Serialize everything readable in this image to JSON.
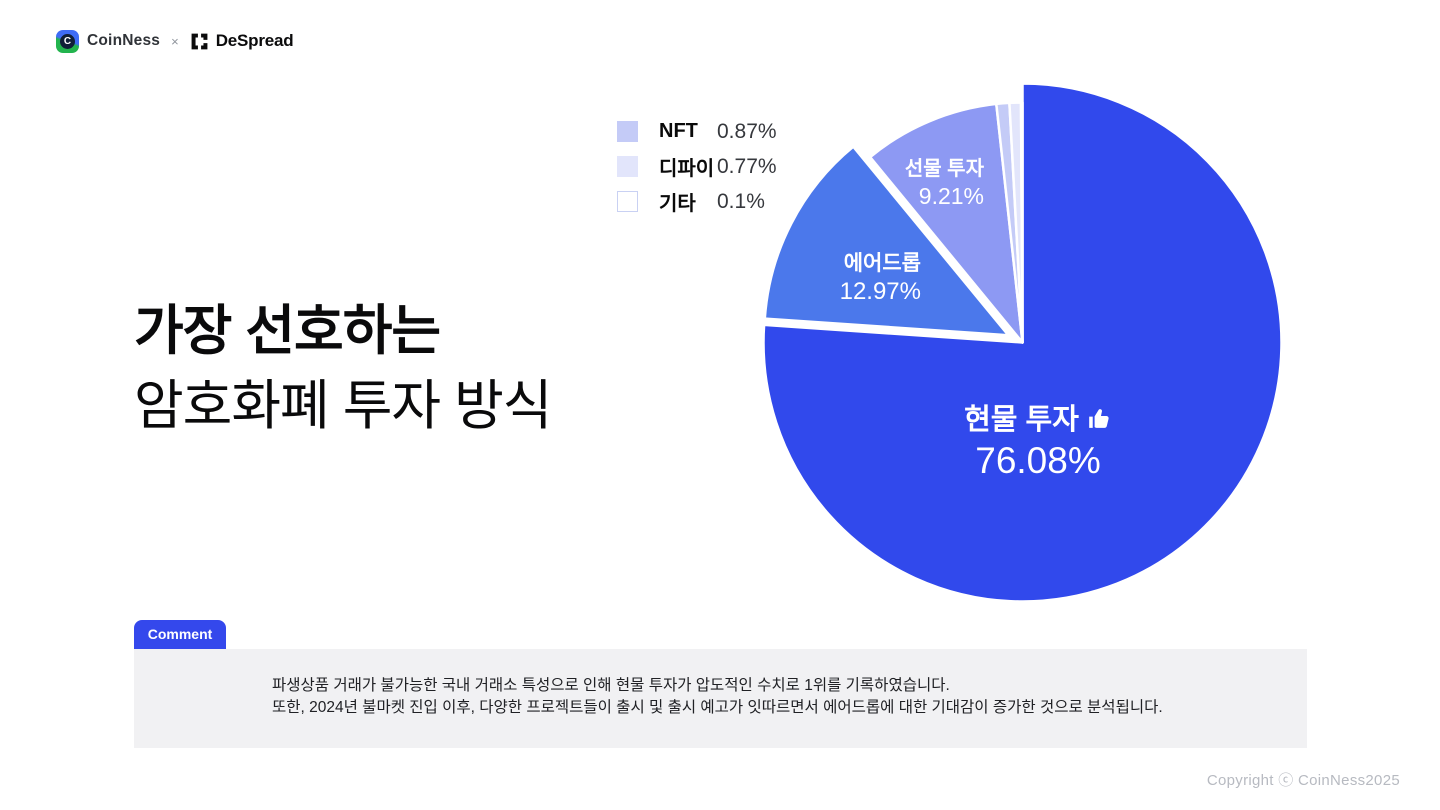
{
  "header": {
    "brand1": "CoinNess",
    "separator": "×",
    "brand2": "DeSpread"
  },
  "title": {
    "line1": "가장 선호하는",
    "line2": "암호화폐 투자 방식"
  },
  "legend": [
    {
      "label": "NFT",
      "value": "0.87%",
      "color": "#c4cbf7",
      "border": "#c4cbf7"
    },
    {
      "label": "디파이",
      "value": "0.77%",
      "color": "#e2e5fb",
      "border": "#e2e5fb"
    },
    {
      "label": "기타",
      "value": "0.1%",
      "color": "#ffffff",
      "border": "#c9d1f3"
    }
  ],
  "chart_data": {
    "type": "pie",
    "title": "가장 선호하는 암호화폐 투자 방식",
    "unit": "%",
    "start_angle_deg": 0,
    "direction": "clockwise",
    "center": [
      1022.5,
      342.5
    ],
    "slices": [
      {
        "key": "spot",
        "label": "현물 투자",
        "value": 76.08,
        "color": "#3149ec",
        "radius": 259,
        "explode": 0
      },
      {
        "key": "airdrop",
        "label": "에어드롭",
        "value": 12.97,
        "color": "#4b78eb",
        "radius": 244,
        "explode": 16
      },
      {
        "key": "futures",
        "label": "선물 투자",
        "value": 9.21,
        "color": "#8d99f3",
        "radius": 240,
        "explode": 0
      },
      {
        "key": "nft",
        "label": "NFT",
        "value": 0.87,
        "color": "#c4cbf7",
        "radius": 240,
        "explode": 0
      },
      {
        "key": "defi",
        "label": "디파이",
        "value": 0.77,
        "color": "#e2e5fb",
        "radius": 240,
        "explode": 0
      },
      {
        "key": "etc",
        "label": "기타",
        "value": 0.1,
        "color": "#fdfdff",
        "radius": 240,
        "explode": 0
      }
    ]
  },
  "pie_labels": {
    "spot": {
      "name": "현물 투자",
      "value": "76.08%"
    },
    "airdrop": {
      "name": "에어드롭",
      "value": "12.97%"
    },
    "futures": {
      "name": "선물 투자",
      "value": "9.21%"
    }
  },
  "comment": {
    "tab": "Comment",
    "line1": "파생상품 거래가 불가능한 국내 거래소 특성으로 인해 현물 투자가 압도적인 수치로 1위를 기록하였습니다.",
    "line2": "또한, 2024년 불마켓 진입 이후, 다양한 프로젝트들이 출시 및 출시 예고가 잇따르면서 에어드롭에 대한 기대감이 증가한 것으로 분석됩니다."
  },
  "footer": {
    "copyright": "Copyright ⓒ CoinNess2025"
  }
}
